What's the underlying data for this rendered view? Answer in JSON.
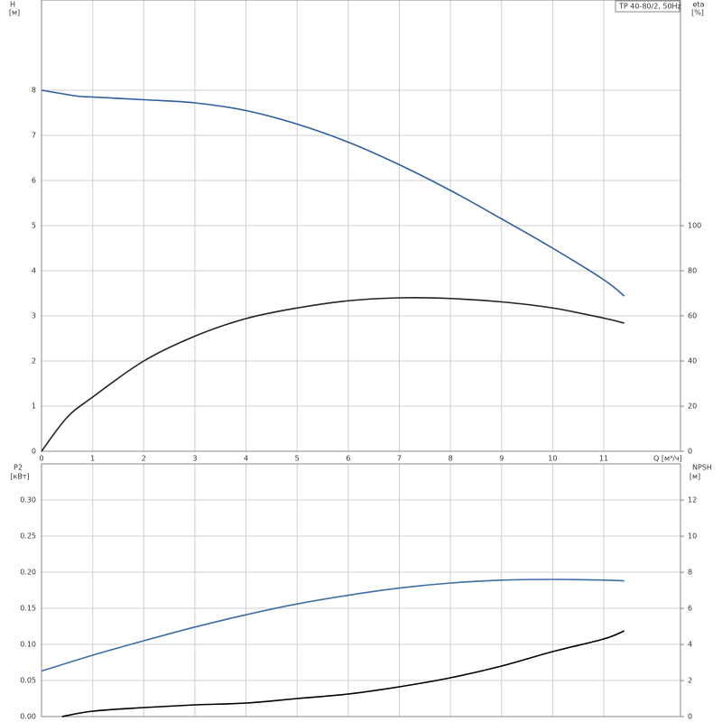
{
  "chart_data": [
    {
      "type": "line",
      "title": "TP 40-80/2, 50Hz",
      "ylabel": "H",
      "yunit": "[м]",
      "y2label": "eta",
      "y2unit": "[%]",
      "xlabel": "Q [м³/ч]",
      "xlim": [
        0,
        12.5
      ],
      "xticks": [
        0,
        1,
        2,
        3,
        4,
        5,
        6,
        7,
        8,
        9,
        10,
        11
      ],
      "ylim": [
        0,
        10
      ],
      "yticks": [
        0,
        1,
        2,
        3,
        4,
        5,
        6,
        7,
        8
      ],
      "y2lim": [
        0,
        200
      ],
      "y2ticks": [
        0,
        20,
        40,
        60,
        80,
        100
      ],
      "grid": true,
      "series": [
        {
          "name": "H",
          "color": "#2f5f9e",
          "x": [
            0,
            0.7,
            1,
            2,
            3,
            4,
            5,
            6,
            7,
            8,
            9,
            10,
            11,
            11.4
          ],
          "values": [
            8,
            7.87,
            7.85,
            7.79,
            7.72,
            7.55,
            7.25,
            6.85,
            6.35,
            5.78,
            5.15,
            4.5,
            3.8,
            3.44
          ]
        },
        {
          "name": "eta",
          "color": "#222222",
          "axis": "y2",
          "x": [
            0,
            0.5,
            1,
            2,
            3,
            4,
            5,
            6,
            7,
            8,
            9,
            10,
            11,
            11.4
          ],
          "values": [
            0,
            15,
            24,
            40,
            51,
            58.8,
            63.5,
            66.7,
            68,
            67.7,
            66.2,
            63.5,
            59,
            56.8
          ]
        }
      ]
    },
    {
      "type": "line",
      "ylabel": "P2",
      "yunit": "[кВт]",
      "y2label": "NPSH",
      "y2unit": "[м]",
      "xlim": [
        0,
        12.5
      ],
      "ylim": [
        0,
        0.35
      ],
      "yticks": [
        {
          "value": 0,
          "label": "0.00"
        },
        0.05,
        {
          "value": 0.1,
          "label": "0.10"
        },
        0.15,
        {
          "value": 0.2,
          "label": "0.20"
        },
        0.25,
        {
          "value": 0.3,
          "label": "0.30"
        }
      ],
      "y2lim": [
        0,
        14
      ],
      "y2ticks": [
        0,
        2,
        4,
        6,
        8,
        10,
        12
      ],
      "grid": true,
      "series": [
        {
          "name": "P2",
          "color": "#3d6fa5",
          "x": [
            0,
            1,
            2,
            3,
            4,
            5,
            6,
            7,
            8,
            9,
            10,
            11,
            11.4
          ],
          "values": [
            0.063,
            0.085,
            0.105,
            0.124,
            0.141,
            0.156,
            0.168,
            0.178,
            0.185,
            0.189,
            0.19,
            0.189,
            0.188
          ]
        },
        {
          "name": "NPSH",
          "color": "#000000",
          "axis": "y2",
          "x": [
            0.4,
            1,
            2,
            3,
            4,
            5,
            6,
            7,
            8,
            9,
            10,
            11,
            11.4
          ],
          "values": [
            0,
            0.3,
            0.5,
            0.65,
            0.75,
            1.0,
            1.25,
            1.65,
            2.15,
            2.8,
            3.6,
            4.3,
            4.75
          ]
        }
      ]
    }
  ]
}
